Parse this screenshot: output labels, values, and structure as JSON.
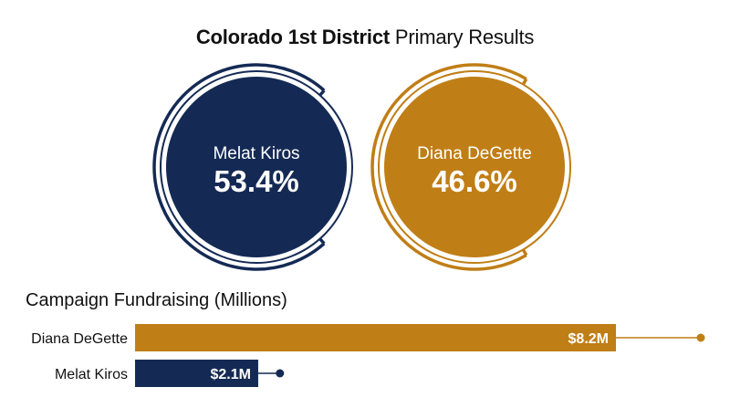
{
  "title": {
    "bold": "Colorado 1st District",
    "light": "Primary Results"
  },
  "colors": {
    "navy": "#142a55",
    "gold": "#c07e16"
  },
  "candidates": [
    {
      "name": "Melat Kiros",
      "pct_label": "53.4%",
      "pct": 53.4,
      "color": "#142a55"
    },
    {
      "name": "Diana DeGette",
      "pct_label": "46.6%",
      "pct": 46.6,
      "color": "#c07e16"
    }
  ],
  "fundraising": {
    "title": "Campaign Fundraising (Millions)"
  },
  "chart_data": [
    {
      "type": "pie",
      "title": "Colorado 1st District Primary Results",
      "categories": [
        "Melat Kiros",
        "Diana DeGette"
      ],
      "values": [
        53.4,
        46.6
      ],
      "unit": "%"
    },
    {
      "type": "bar",
      "orientation": "horizontal",
      "title": "Campaign Fundraising (Millions)",
      "categories": [
        "Diana DeGette",
        "Melat Kiros"
      ],
      "values": [
        8.2,
        2.1
      ],
      "value_labels": [
        "$8.2M",
        "$2.1M"
      ],
      "colors": [
        "#c07e16",
        "#142a55"
      ],
      "xlim": [
        0,
        8.2
      ]
    }
  ]
}
